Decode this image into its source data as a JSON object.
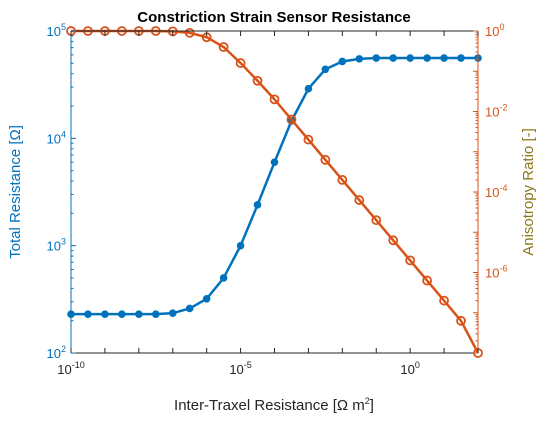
{
  "chart_data": {
    "type": "line",
    "title": "Constriction Strain Sensor Resistance",
    "xlabel": "Inter-Traxel Resistance [Ω m",
    "xlabel_sup": "2",
    "xlabel_close": "]",
    "ylabel_left": "Total Resistance [Ω]",
    "ylabel_right": "Anisotropy Ratio [-]",
    "xscale": "log",
    "xlim": [
      1e-10,
      100
    ],
    "yscale_left": "log",
    "ylim_left": [
      100,
      100000
    ],
    "yscale_right": "log",
    "ylim_right": [
      1e-08,
      1
    ],
    "grid": false,
    "legend": "none",
    "colors": {
      "left_axis": "#0072bd",
      "right_axis": "#d95319",
      "right_label": "#8c7a1a",
      "series_left": "#0072bd",
      "series_right": "#d95319"
    },
    "xticks": [
      {
        "base": "10",
        "exp": "-10",
        "value": 1e-10
      },
      {
        "base": "10",
        "exp": "-5",
        "value": 1e-05
      },
      {
        "base": "10",
        "exp": "0",
        "value": 1
      }
    ],
    "yticks_left": [
      {
        "base": "10",
        "exp": "2",
        "value": 100
      },
      {
        "base": "10",
        "exp": "3",
        "value": 1000
      },
      {
        "base": "10",
        "exp": "4",
        "value": 10000
      },
      {
        "base": "10",
        "exp": "5",
        "value": 100000
      }
    ],
    "yticks_right": [
      {
        "base": "10",
        "exp": "-6",
        "value": 1e-06
      },
      {
        "base": "10",
        "exp": "-4",
        "value": 0.0001
      },
      {
        "base": "10",
        "exp": "-2",
        "value": 0.01
      },
      {
        "base": "10",
        "exp": "0",
        "value": 1
      }
    ],
    "x": [
      1e-10,
      3.16e-10,
      1e-09,
      3.16e-09,
      1e-08,
      3.16e-08,
      1e-07,
      3.16e-07,
      1e-06,
      3.16e-06,
      1e-05,
      3.16e-05,
      0.0001,
      0.000316,
      0.001,
      0.00316,
      0.01,
      0.0316,
      0.1,
      0.316,
      1,
      3.16,
      10,
      31.6,
      100
    ],
    "series": [
      {
        "axis": "left",
        "marker": "filled-circle",
        "values": [
          230,
          230,
          230,
          230,
          230,
          230,
          235,
          260,
          320,
          500,
          1000,
          2400,
          6000,
          14500,
          29000,
          44000,
          52000,
          55000,
          56000,
          56000,
          56000,
          56000,
          56000,
          56000,
          56000
        ]
      },
      {
        "axis": "right",
        "marker": "open-circle",
        "values": [
          1,
          1,
          1,
          1,
          1,
          1,
          0.98,
          0.9,
          0.7,
          0.4,
          0.16,
          0.058,
          0.02,
          0.0063,
          0.002,
          0.00063,
          0.0002,
          6.3e-05,
          2e-05,
          6.3e-06,
          2e-06,
          6.3e-07,
          2e-07,
          6.3e-08,
          1e-08
        ]
      }
    ]
  }
}
